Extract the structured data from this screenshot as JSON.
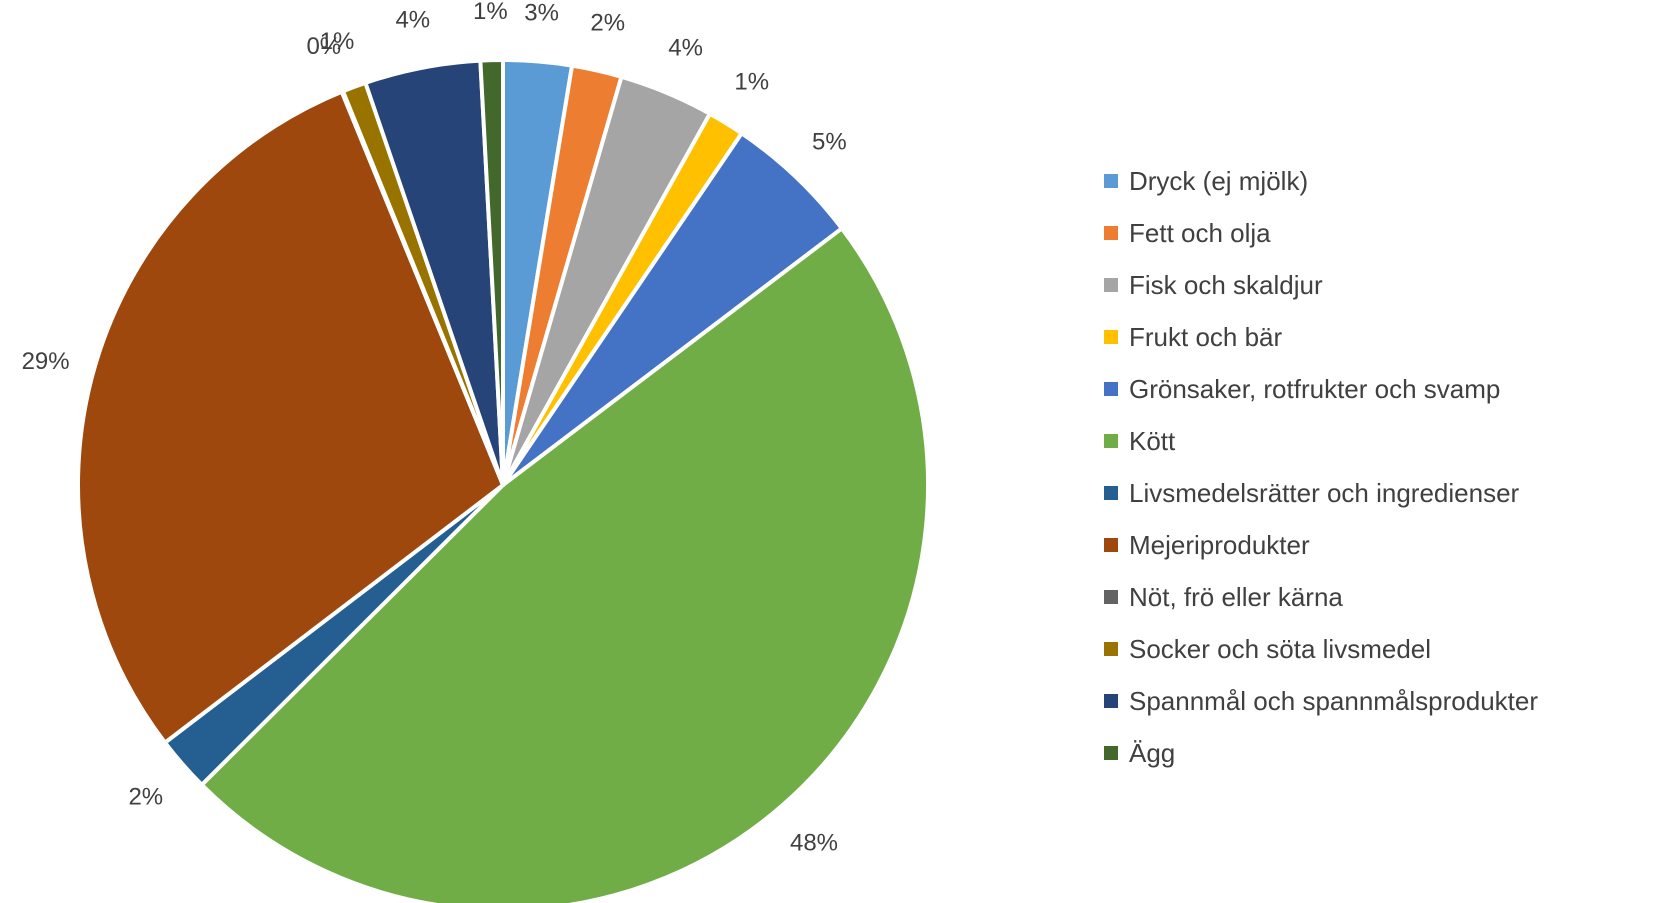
{
  "chart_data": {
    "type": "pie",
    "title": "",
    "legend_position": "right",
    "start_angle_deg": 0,
    "direction": "clockwise",
    "slices": [
      {
        "label": "Dryck (ej mjölk)",
        "value": 2.6,
        "display": "3%",
        "color": "#5B9BD5"
      },
      {
        "label": "Fett och olja",
        "value": 1.9,
        "display": "2%",
        "color": "#ED7D31"
      },
      {
        "label": "Fisk och skaldjur",
        "value": 3.6,
        "display": "4%",
        "color": "#A5A5A5"
      },
      {
        "label": "Frukt och bär",
        "value": 1.4,
        "display": "1%",
        "color": "#FFC000"
      },
      {
        "label": "Grönsaker, rotfrukter och svamp",
        "value": 5.2,
        "display": "5%",
        "color": "#4472C4"
      },
      {
        "label": "Kött",
        "value": 47.9,
        "display": "48%",
        "color": "#70AD47"
      },
      {
        "label": "Livsmedelsrätter och ingredienser",
        "value": 2.1,
        "display": "2%",
        "color": "#255E91"
      },
      {
        "label": "Mejeriprodukter",
        "value": 29.2,
        "display": "29%",
        "color": "#9E480E"
      },
      {
        "label": "Nöt, frö eller kärna",
        "value": 0.05,
        "display": "0%",
        "color": "#636363"
      },
      {
        "label": "Socker och söta livsmedel",
        "value": 0.9,
        "display": "1%",
        "color": "#997300"
      },
      {
        "label": "Spannmål och spannmålsprodukter",
        "value": 4.4,
        "display": "4%",
        "color": "#264478"
      },
      {
        "label": "Ägg",
        "value": 0.85,
        "display": "1%",
        "color": "#43682B"
      }
    ]
  }
}
